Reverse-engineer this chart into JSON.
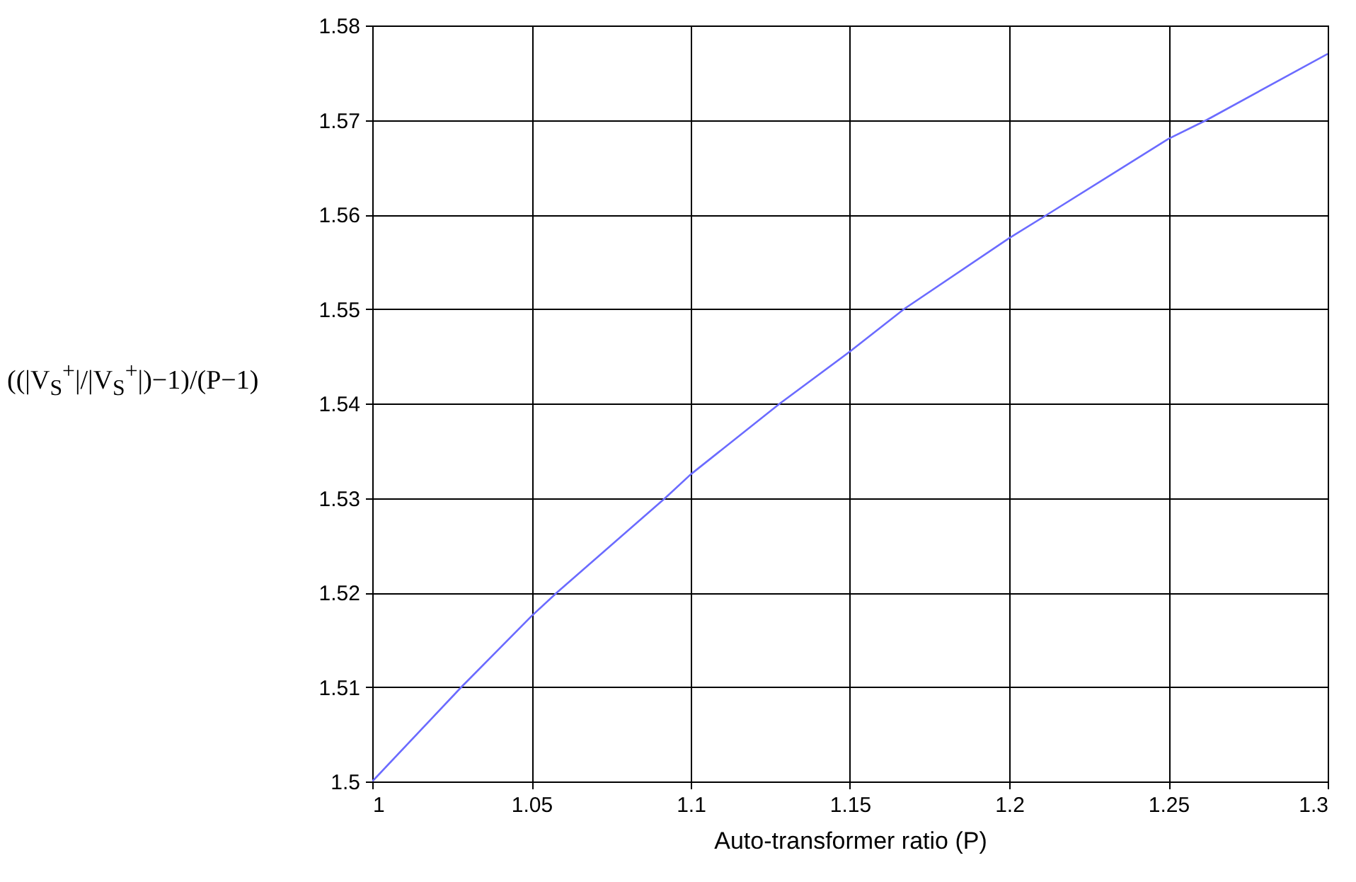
{
  "chart_data": {
    "type": "line",
    "xlabel": "Auto-transformer ratio (P)",
    "ylabel": "((|V$_{S}$$^{+}$|/|V$_{S}$$^{+}$|)−1)/(P−1)",
    "x": [
      1,
      1.028,
      1.05,
      1.058,
      1.092,
      1.1,
      1.128,
      1.15,
      1.167,
      1.2,
      1.212,
      1.25,
      1.262,
      1.3
    ],
    "series": [
      {
        "color": "#6b6bff",
        "values": [
          1.5,
          1.51,
          1.5175,
          1.52,
          1.53,
          1.5325,
          1.54,
          1.5455,
          1.55,
          1.5575,
          1.56,
          1.568,
          1.57,
          1.577
        ]
      }
    ],
    "xlim": [
      1,
      1.3
    ],
    "xticks": [
      1,
      1.05,
      1.1,
      1.15,
      1.2,
      1.25,
      1.3
    ],
    "ylim": [
      1.5,
      1.58
    ],
    "yticks": [
      1.5,
      1.51,
      1.52,
      1.53,
      1.54,
      1.55,
      1.56,
      1.57,
      1.58
    ],
    "grid": true,
    "marker": "none",
    "line_style": "solid"
  }
}
